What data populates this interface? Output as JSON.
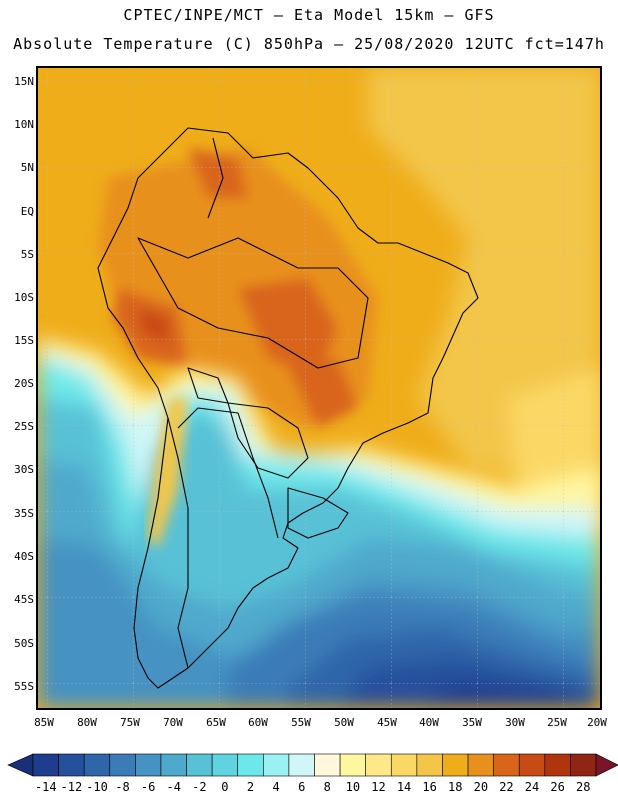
{
  "title": {
    "line1": "CPTEC/INPE/MCT –  Eta Model 15km – GFS",
    "line2": "Absolute Temperature (C) 850hPa – 25/08/2020 12UTC fct=147h"
  },
  "map": {
    "region": "South America",
    "lat_labels": [
      "15N",
      "10N",
      "5N",
      "EQ",
      "5S",
      "10S",
      "15S",
      "20S",
      "25S",
      "30S",
      "35S",
      "40S",
      "45S",
      "50S",
      "55S"
    ],
    "lon_labels": [
      "85W",
      "80W",
      "75W",
      "70W",
      "65W",
      "60W",
      "55W",
      "50W",
      "45W",
      "40W",
      "35W",
      "30W",
      "25W",
      "20W"
    ],
    "gridlines": "dotted"
  },
  "colorbar": {
    "unit": "C",
    "labels": [
      "-14",
      "-12",
      "-10",
      "-8",
      "-6",
      "-4",
      "-2",
      "0",
      "2",
      "4",
      "6",
      "8",
      "10",
      "12",
      "14",
      "16",
      "18",
      "20",
      "22",
      "24",
      "26",
      "28"
    ],
    "colors": [
      "#1e3d8f",
      "#25509c",
      "#2f66aa",
      "#3a7bb8",
      "#4592c3",
      "#4fa9cc",
      "#58c1d6",
      "#5fd4e0",
      "#6de8ea",
      "#9af0f2",
      "#d0f6f8",
      "#fff8dc",
      "#fff6a0",
      "#ffe88a",
      "#fbd866",
      "#f3c64a",
      "#efad1a",
      "#e8901e",
      "#d9651a",
      "#c84a14",
      "#b0350f",
      "#8f2512"
    ],
    "under_color": "#1a2f7a",
    "over_color": "#7a1528"
  }
}
